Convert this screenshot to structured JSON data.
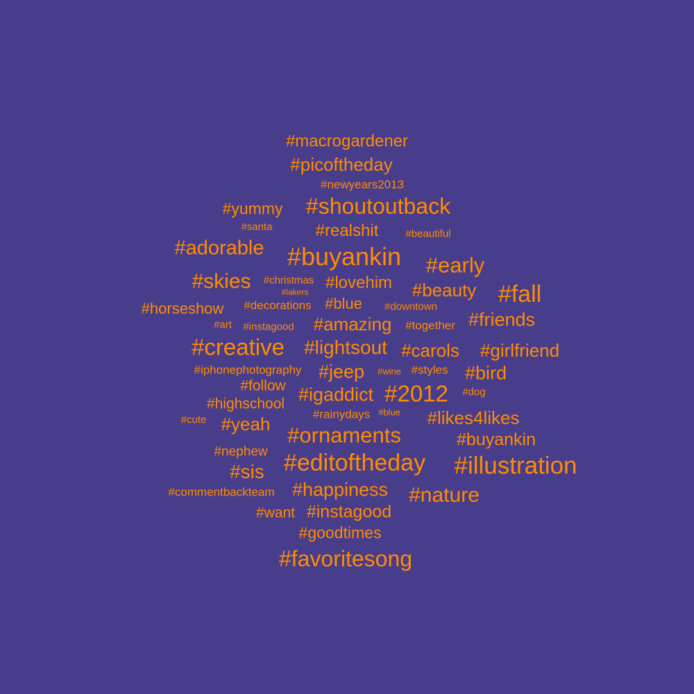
{
  "colors": {
    "background": "#483d8b",
    "text": "#ff8c00"
  },
  "words": [
    "#macrogardener",
    "#picoftheday",
    "#newyears2013",
    "#yummy",
    "#shoutoutback",
    "#santa",
    "#realshit",
    "#beautiful",
    "#adorable",
    "#buyankin",
    "#early",
    "#skies",
    "#christmas",
    "#lakers",
    "#lovehim",
    "#beauty",
    "#fall",
    "#horseshow",
    "#decorations",
    "#blue",
    "#downtown",
    "#art",
    "#instagood",
    "#amazing",
    "#together",
    "#friends",
    "#creative",
    "#lightsout",
    "#carols",
    "#girlfriend",
    "#iphonephotography",
    "#jeep",
    "#wine",
    "#styles",
    "#bird",
    "#follow",
    "#igaddict",
    "#2012",
    "#dog",
    "#highschool",
    "#rainydays",
    "#blue",
    "#cute",
    "#yeah",
    "#likes4likes",
    "#ornaments",
    "#buyankin",
    "#nephew",
    "#editoftheday",
    "#illustration",
    "#sis",
    "#commentbackteam",
    "#happiness",
    "#nature",
    "#want",
    "#instagood",
    "#goodtimes",
    "#favoritesong"
  ]
}
